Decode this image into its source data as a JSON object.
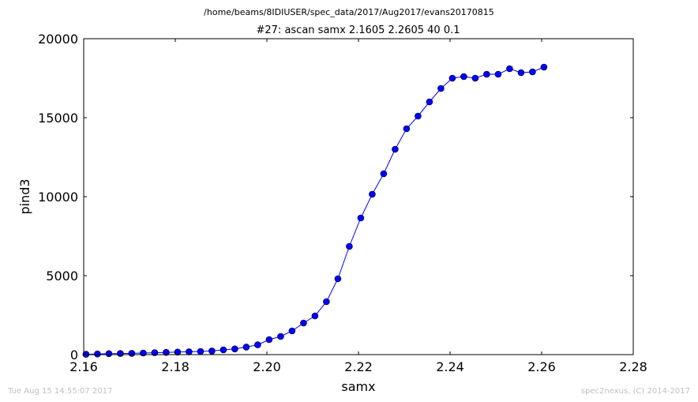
{
  "page": {
    "suptitle": "/home/beams/8IDIUSER/spec_data/2017/Aug2017/evans20170815",
    "footer_left": "Tue Aug 15 14:55:07 2017",
    "footer_right": "spec2nexus, (C) 2014-2017"
  },
  "chart_data": {
    "type": "line",
    "title": "#27: ascan  samx 2.1605 2.2605  40 0.1",
    "xlabel": "samx",
    "ylabel": "pind3",
    "xlim": [
      2.16,
      2.28
    ],
    "ylim": [
      0,
      20000
    ],
    "xticks": [
      "2.16",
      "2.18",
      "2.20",
      "2.22",
      "2.24",
      "2.26",
      "2.28"
    ],
    "yticks": [
      "0",
      "5000",
      "10000",
      "15000",
      "20000"
    ],
    "grid": false,
    "line_color": "#0000ff",
    "marker": "circle",
    "series": [
      {
        "x": [
          2.1605,
          2.163,
          2.1655,
          2.168,
          2.1705,
          2.173,
          2.1755,
          2.178,
          2.1805,
          2.183,
          2.1855,
          2.188,
          2.1905,
          2.193,
          2.1955,
          2.198,
          2.2005,
          2.203,
          2.2055,
          2.208,
          2.2105,
          2.213,
          2.2155,
          2.218,
          2.2205,
          2.223,
          2.2255,
          2.228,
          2.2305,
          2.233,
          2.2355,
          2.238,
          2.2405,
          2.243,
          2.2455,
          2.248,
          2.2505,
          2.253,
          2.2555,
          2.258,
          2.2605
        ],
        "y": [
          20,
          40,
          60,
          70,
          80,
          100,
          120,
          140,
          160,
          180,
          200,
          230,
          300,
          360,
          480,
          620,
          950,
          1150,
          1500,
          2000,
          2450,
          3350,
          4800,
          6850,
          8650,
          10150,
          11450,
          13000,
          14300,
          15100,
          16000,
          16850,
          17500,
          17600,
          17500,
          17750,
          17750,
          18100,
          17850,
          17900,
          18200
        ]
      }
    ]
  }
}
